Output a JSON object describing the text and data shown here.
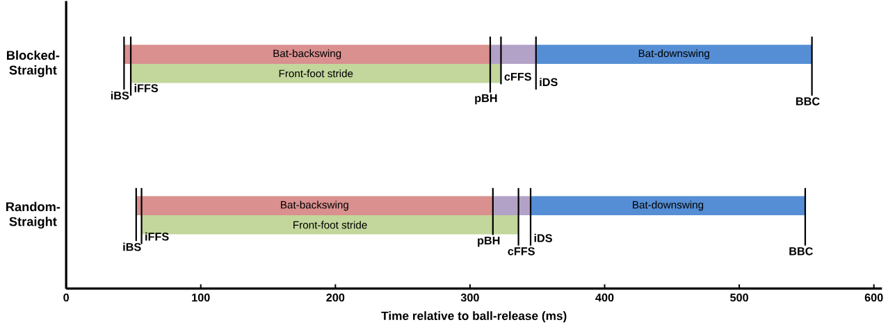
{
  "chart_data": {
    "type": "bar",
    "orientation": "horizontal",
    "categories": [
      "Blocked-Straight",
      "Random-Straight"
    ],
    "series": [
      {
        "name": "Bat-backswing",
        "color": "#d9908f",
        "base": [
          43,
          52
        ],
        "values": [
          272,
          265
        ]
      },
      {
        "name": "Front-foot stride",
        "color": "#c3d69b",
        "base": [
          48,
          56
        ],
        "values": [
          275,
          280
        ]
      },
      {
        "color": "#b3a2c7",
        "base": [
          315,
          317
        ],
        "values": [
          34,
          28
        ]
      },
      {
        "name": "Bat-downswing",
        "color": "#558ed5",
        "base": [
          349,
          345
        ],
        "values": [
          205,
          204
        ]
      }
    ],
    "xlim": [
      0,
      606
    ],
    "xticks": [
      0,
      100,
      200,
      300,
      400,
      500,
      600
    ],
    "xlabel": "Time relative to ball-release (ms)",
    "annotations": [
      {
        "text": "iBS",
        "x": 43,
        "y": "Blocked-Straight"
      },
      {
        "text": "iFFS",
        "x": 48,
        "y": "Blocked-Straight"
      },
      {
        "text": "pBH",
        "x": 315,
        "y": "Blocked-Straight"
      },
      {
        "text": "cFFS",
        "x": 323,
        "y": "Blocked-Straight"
      },
      {
        "text": "iDS",
        "x": 349,
        "y": "Blocked-Straight"
      },
      {
        "text": "BBC",
        "x": 554,
        "y": "Blocked-Straight"
      },
      {
        "text": "iBS",
        "x": 52,
        "y": "Random-Straight"
      },
      {
        "text": "iFFS",
        "x": 56,
        "y": "Random-Straight"
      },
      {
        "text": "pBH",
        "x": 317,
        "y": "Random-Straight"
      },
      {
        "text": "cFFS",
        "x": 336,
        "y": "Random-Straight"
      },
      {
        "text": "iDS",
        "x": 345,
        "y": "Random-Straight"
      },
      {
        "text": "BBC",
        "x": 549,
        "y": "Random-Straight"
      }
    ]
  }
}
